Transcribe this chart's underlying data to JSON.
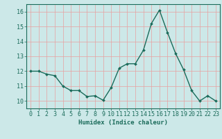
{
  "x": [
    0,
    1,
    2,
    3,
    4,
    5,
    6,
    7,
    8,
    9,
    10,
    11,
    12,
    13,
    14,
    15,
    16,
    17,
    18,
    19,
    20,
    21,
    22,
    23
  ],
  "y": [
    12.0,
    12.0,
    11.8,
    11.7,
    11.0,
    10.7,
    10.7,
    10.3,
    10.35,
    10.05,
    10.9,
    12.2,
    12.5,
    12.5,
    13.4,
    15.2,
    16.1,
    14.6,
    13.2,
    12.1,
    10.7,
    10.0,
    10.35,
    10.0
  ],
  "line_color": "#1a6b5a",
  "marker": "D",
  "marker_size": 2.0,
  "bg_color": "#cce8e8",
  "grid_color": "#e8a0a0",
  "xlabel": "Humidex (Indice chaleur)",
  "xlim": [
    -0.5,
    23.5
  ],
  "ylim": [
    9.5,
    16.5
  ],
  "yticks": [
    10,
    11,
    12,
    13,
    14,
    15,
    16
  ],
  "xticks": [
    0,
    1,
    2,
    3,
    4,
    5,
    6,
    7,
    8,
    9,
    10,
    11,
    12,
    13,
    14,
    15,
    16,
    17,
    18,
    19,
    20,
    21,
    22,
    23
  ],
  "xlabel_fontsize": 6.5,
  "tick_fontsize": 6.0,
  "line_width": 1.0
}
